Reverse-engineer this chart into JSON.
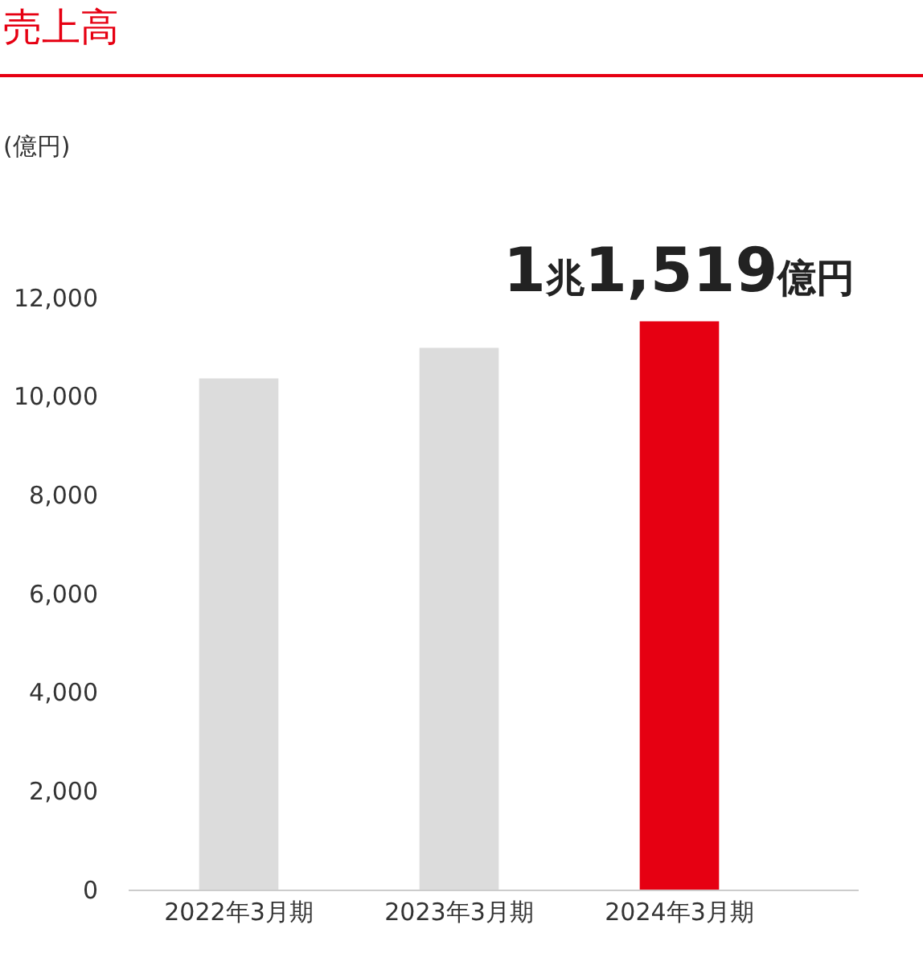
{
  "chart_data": {
    "type": "bar",
    "title": "売上高",
    "annotations": [
      "(億円)",
      {
        "text": "1兆1,519億円",
        "x": "2024年3月期",
        "y": 11519
      }
    ],
    "categories": [
      "2022年3月期",
      "2023年3月期",
      "2024年3月期"
    ],
    "values": [
      10360,
      10980,
      11519
    ],
    "colors": [
      "#dcdcdc",
      "#dcdcdc",
      "#e60012"
    ],
    "ylim": [
      0,
      12000
    ],
    "yticks": [
      0,
      {
        "value": 2000,
        "label": "2,000"
      },
      {
        "value": 4000,
        "label": "4,000"
      },
      {
        "value": 6000,
        "label": "6,000"
      },
      {
        "value": 8000,
        "label": "8,000"
      },
      {
        "value": 10000,
        "label": "10,000"
      },
      {
        "value": 12000,
        "label": "12,000"
      }
    ],
    "grid": false,
    "legend": false
  }
}
